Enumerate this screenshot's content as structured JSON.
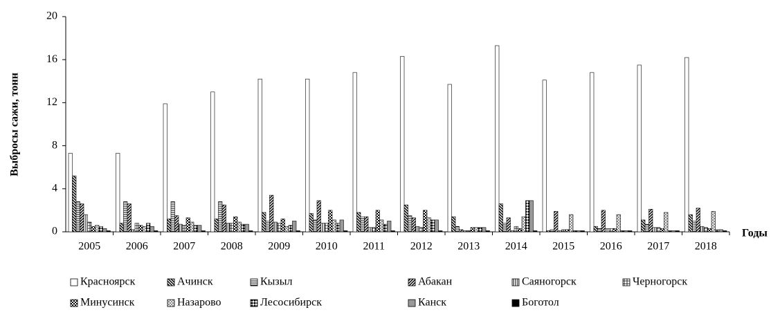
{
  "chart_data": {
    "type": "bar",
    "y_label": "Выбросы сажи, тонн",
    "x_label": "Годы",
    "categories": [
      "2005",
      "2006",
      "2007",
      "2008",
      "2009",
      "2010",
      "2011",
      "2012",
      "2013",
      "2014",
      "2015",
      "2016",
      "2017",
      "2018"
    ],
    "ylim": [
      0,
      20
    ],
    "yticks": [
      0,
      4,
      8,
      12,
      16,
      20
    ],
    "series": [
      {
        "name": "Красноярск",
        "pattern": "white",
        "values": [
          7.3,
          7.3,
          11.9,
          13.0,
          14.2,
          14.2,
          14.8,
          16.3,
          13.7,
          17.3,
          14.1,
          14.8,
          15.5,
          16.2
        ]
      },
      {
        "name": "Ачинск",
        "pattern": "hatch-back",
        "values": [
          5.2,
          0.8,
          1.2,
          1.2,
          1.8,
          1.7,
          1.8,
          2.5,
          1.4,
          2.6,
          0.1,
          0.5,
          1.1,
          1.6
        ]
      },
      {
        "name": "Кызыл",
        "pattern": "horizontal",
        "values": [
          2.8,
          2.8,
          2.8,
          2.8,
          1.0,
          1.1,
          1.4,
          1.5,
          0.5,
          0.8,
          0.2,
          0.3,
          0.7,
          1.0
        ]
      },
      {
        "name": "Абакан",
        "pattern": "hatch-fwd",
        "values": [
          2.6,
          2.6,
          1.5,
          2.5,
          3.4,
          2.9,
          1.4,
          1.3,
          0.2,
          1.3,
          1.9,
          2.0,
          2.1,
          2.2
        ]
      },
      {
        "name": "Саяногорск",
        "pattern": "vertical",
        "values": [
          1.6,
          0.2,
          0.7,
          0.8,
          0.9,
          0.8,
          0.4,
          0.5,
          0.1,
          0.1,
          0.1,
          0.3,
          0.4,
          0.5
        ]
      },
      {
        "name": "Черногорск",
        "pattern": "grid",
        "values": [
          0.9,
          0.8,
          0.6,
          0.8,
          0.8,
          0.8,
          0.4,
          0.4,
          0.1,
          0.5,
          0.2,
          0.3,
          0.4,
          0.4
        ]
      },
      {
        "name": "Минусинск",
        "pattern": "checker",
        "values": [
          0.5,
          0.6,
          1.3,
          1.4,
          1.2,
          2.0,
          2.0,
          2.0,
          0.4,
          0.3,
          0.2,
          0.3,
          0.3,
          0.3
        ]
      },
      {
        "name": "Назарово",
        "pattern": "cross",
        "values": [
          0.6,
          0.5,
          0.9,
          0.9,
          0.5,
          1.1,
          1.1,
          1.3,
          0.4,
          1.4,
          1.6,
          1.6,
          1.8,
          1.9
        ]
      },
      {
        "name": "Лесосибирск",
        "pattern": "bowtie",
        "values": [
          0.5,
          0.8,
          0.6,
          0.7,
          0.6,
          0.8,
          0.7,
          1.1,
          0.4,
          2.9,
          0.1,
          0.1,
          0.1,
          0.2
        ]
      },
      {
        "name": "Канск",
        "pattern": "gray",
        "values": [
          0.3,
          0.5,
          0.6,
          0.7,
          1.0,
          1.1,
          1.0,
          1.1,
          0.4,
          2.9,
          0.1,
          0.1,
          0.1,
          0.2
        ]
      },
      {
        "name": "Боготол",
        "pattern": "black",
        "values": [
          0.1,
          0.1,
          0.1,
          0.1,
          0.1,
          0.1,
          0.1,
          0.1,
          0.1,
          0.1,
          0.1,
          0.1,
          0.1,
          0.1
        ]
      }
    ]
  }
}
